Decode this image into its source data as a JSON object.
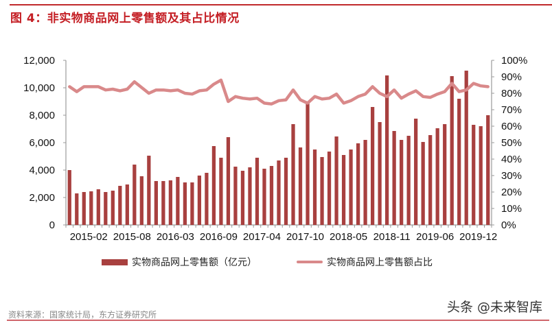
{
  "header": {
    "title": "图 4：非实物商品网上零售额及其占比情况"
  },
  "footer": {
    "source": "资料来源：国家统计局，东方证券研究所",
    "watermark": "头条 @未来智库"
  },
  "colors": {
    "bar": "#a8403f",
    "line": "#d9898a",
    "accent": "#c41e24",
    "axis": "#999999"
  },
  "chart_data": {
    "type": "bar+line",
    "title": "图 4：非实物商品网上零售额及其占比情况",
    "xlabel": "",
    "ylabel_left": "",
    "ylabel_right": "",
    "ylim_left": [
      0,
      12000
    ],
    "ylim_right": [
      0,
      100
    ],
    "yticks_left": [
      "0",
      "2,000",
      "4,000",
      "6,000",
      "8,000",
      "10,000",
      "12,000"
    ],
    "yticks_right": [
      "0%",
      "10%",
      "20%",
      "30%",
      "40%",
      "50%",
      "60%",
      "70%",
      "80%",
      "90%",
      "100%"
    ],
    "xtick_labels": [
      {
        "index": 0,
        "label": "2015-02"
      },
      {
        "index": 6,
        "label": "2015-08"
      },
      {
        "index": 12,
        "label": "2016-03"
      },
      {
        "index": 18,
        "label": "2016-09"
      },
      {
        "index": 24,
        "label": "2017-04"
      },
      {
        "index": 30,
        "label": "2017-10"
      },
      {
        "index": 36,
        "label": "2018-05"
      },
      {
        "index": 42,
        "label": "2018-11"
      },
      {
        "index": 48,
        "label": "2019-06"
      },
      {
        "index": 54,
        "label": "2019-12"
      }
    ],
    "grid": false,
    "legend_position": "bottom",
    "series": [
      {
        "name": "实物商品网上零售额（亿元）",
        "type": "bar",
        "axis": "left",
        "values": [
          4000,
          2300,
          2400,
          2450,
          2600,
          2400,
          2500,
          2850,
          2950,
          4400,
          3550,
          5050,
          3200,
          3200,
          3250,
          3500,
          3100,
          3100,
          3600,
          3800,
          5750,
          4900,
          6400,
          4250,
          3950,
          4200,
          4900,
          4100,
          4300,
          4700,
          4900,
          7350,
          5650,
          9000,
          5500,
          4950,
          5350,
          6450,
          5100,
          5500,
          5950,
          6200,
          8600,
          7500,
          10900,
          6850,
          6200,
          6500,
          7750,
          6050,
          6550,
          7050,
          7350,
          10850,
          9200,
          11250,
          7300,
          7200,
          8000
        ]
      },
      {
        "name": "实物商品网上零售额占比",
        "type": "line",
        "axis": "right",
        "values": [
          84,
          81,
          84,
          84,
          84,
          82,
          82.5,
          81.5,
          82.5,
          87,
          83.5,
          80,
          82,
          82,
          81.5,
          82,
          80,
          79.5,
          81.5,
          82,
          85.5,
          88,
          75,
          78,
          77,
          76.5,
          77,
          74,
          73.5,
          75.5,
          76,
          82,
          76,
          74,
          78,
          76.5,
          77,
          79.5,
          74,
          75.5,
          78,
          79.5,
          84,
          80,
          78,
          82,
          77,
          79.5,
          81.5,
          78,
          77.5,
          79.5,
          81,
          86,
          81,
          82,
          86,
          84.5,
          84
        ]
      }
    ]
  }
}
